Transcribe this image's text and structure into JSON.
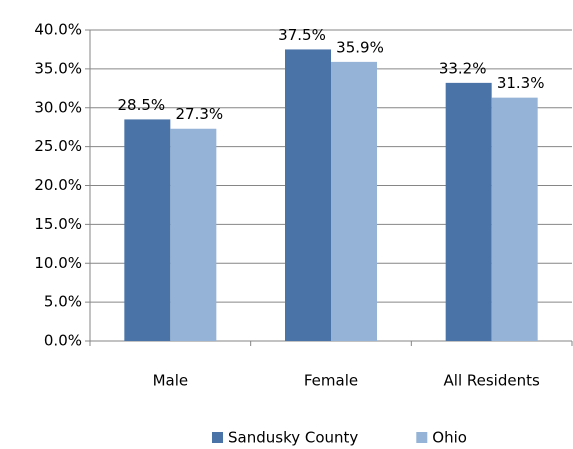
{
  "chart_data": {
    "type": "bar",
    "categories": [
      "Male",
      "Female",
      "All Residents"
    ],
    "series": [
      {
        "name": "Sandusky County",
        "color": "#4a74a8",
        "values": [
          28.5,
          37.5,
          33.2
        ],
        "value_labels": [
          "28.5%",
          "37.5%",
          "33.2%"
        ]
      },
      {
        "name": "Ohio",
        "color": "#95b3d7",
        "values": [
          27.3,
          35.9,
          31.3
        ],
        "value_labels": [
          "27.3%",
          "35.9%",
          "31.3%"
        ]
      }
    ],
    "ylim": [
      0,
      40
    ],
    "yticks": [
      {
        "value": 0,
        "label": "0.0%"
      },
      {
        "value": 5,
        "label": "5.0%"
      },
      {
        "value": 10,
        "label": "10.0%"
      },
      {
        "value": 15,
        "label": "15.0%"
      },
      {
        "value": 20,
        "label": "20.0%"
      },
      {
        "value": 25,
        "label": "25.0%"
      },
      {
        "value": 30,
        "label": "30.0%"
      },
      {
        "value": 35,
        "label": "35.0%"
      },
      {
        "value": 40,
        "label": "40.0%"
      }
    ],
    "grid": true,
    "legend": "bottom"
  }
}
